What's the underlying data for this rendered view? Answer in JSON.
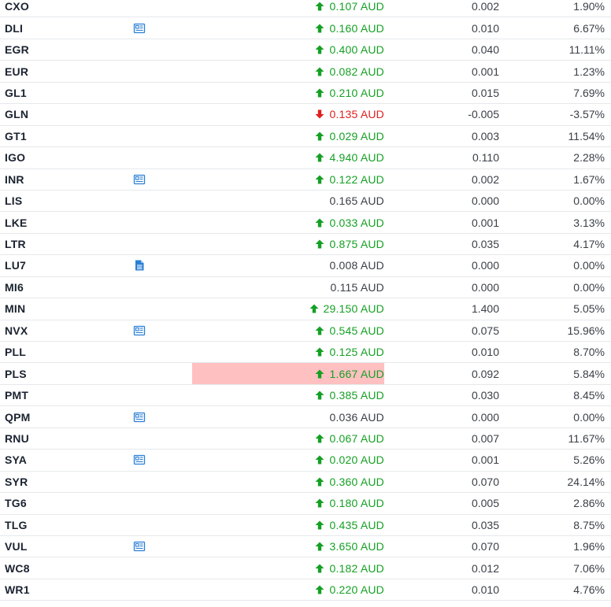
{
  "colors": {
    "up": "#15a024",
    "down": "#e01f1f",
    "neutral": "#3a3f47",
    "icon": "#2a7fd6",
    "highlight": "#ffc0c2"
  },
  "rows": [
    {
      "code": "CXO",
      "icon": "",
      "price": "0.107 AUD",
      "dir": "up",
      "change": "0.002",
      "pct": "1.90%"
    },
    {
      "code": "DLI",
      "icon": "announcement-icon",
      "price": "0.160 AUD",
      "dir": "up",
      "change": "0.010",
      "pct": "6.67%"
    },
    {
      "code": "EGR",
      "icon": "",
      "price": "0.400 AUD",
      "dir": "up",
      "change": "0.040",
      "pct": "11.11%"
    },
    {
      "code": "EUR",
      "icon": "",
      "price": "0.082 AUD",
      "dir": "up",
      "change": "0.001",
      "pct": "1.23%"
    },
    {
      "code": "GL1",
      "icon": "",
      "price": "0.210 AUD",
      "dir": "up",
      "change": "0.015",
      "pct": "7.69%"
    },
    {
      "code": "GLN",
      "icon": "",
      "price": "0.135 AUD",
      "dir": "down",
      "change": "-0.005",
      "pct": "-3.57%"
    },
    {
      "code": "GT1",
      "icon": "",
      "price": "0.029 AUD",
      "dir": "up",
      "change": "0.003",
      "pct": "11.54%"
    },
    {
      "code": "IGO",
      "icon": "",
      "price": "4.940 AUD",
      "dir": "up",
      "change": "0.110",
      "pct": "2.28%"
    },
    {
      "code": "INR",
      "icon": "announcement-icon",
      "price": "0.122 AUD",
      "dir": "up",
      "change": "0.002",
      "pct": "1.67%"
    },
    {
      "code": "LIS",
      "icon": "",
      "price": "0.165 AUD",
      "dir": "flat",
      "change": "0.000",
      "pct": "0.00%"
    },
    {
      "code": "LKE",
      "icon": "",
      "price": "0.033 AUD",
      "dir": "up",
      "change": "0.001",
      "pct": "3.13%"
    },
    {
      "code": "LTR",
      "icon": "",
      "price": "0.875 AUD",
      "dir": "up",
      "change": "0.035",
      "pct": "4.17%"
    },
    {
      "code": "LU7",
      "icon": "document-icon",
      "price": "0.008 AUD",
      "dir": "flat",
      "change": "0.000",
      "pct": "0.00%"
    },
    {
      "code": "MI6",
      "icon": "",
      "price": "0.115 AUD",
      "dir": "flat",
      "change": "0.000",
      "pct": "0.00%"
    },
    {
      "code": "MIN",
      "icon": "",
      "price": "29.150 AUD",
      "dir": "up",
      "change": "1.400",
      "pct": "5.05%"
    },
    {
      "code": "NVX",
      "icon": "announcement-icon",
      "price": "0.545 AUD",
      "dir": "up",
      "change": "0.075",
      "pct": "15.96%"
    },
    {
      "code": "PLL",
      "icon": "",
      "price": "0.125 AUD",
      "dir": "up",
      "change": "0.010",
      "pct": "8.70%"
    },
    {
      "code": "PLS",
      "icon": "",
      "price": "1.667 AUD",
      "dir": "up",
      "change": "0.092",
      "pct": "5.84%",
      "highlight": true
    },
    {
      "code": "PMT",
      "icon": "",
      "price": "0.385 AUD",
      "dir": "up",
      "change": "0.030",
      "pct": "8.45%"
    },
    {
      "code": "QPM",
      "icon": "announcement-icon",
      "price": "0.036 AUD",
      "dir": "flat",
      "change": "0.000",
      "pct": "0.00%"
    },
    {
      "code": "RNU",
      "icon": "",
      "price": "0.067 AUD",
      "dir": "up",
      "change": "0.007",
      "pct": "11.67%"
    },
    {
      "code": "SYA",
      "icon": "announcement-icon",
      "price": "0.020 AUD",
      "dir": "up",
      "change": "0.001",
      "pct": "5.26%"
    },
    {
      "code": "SYR",
      "icon": "",
      "price": "0.360 AUD",
      "dir": "up",
      "change": "0.070",
      "pct": "24.14%"
    },
    {
      "code": "TG6",
      "icon": "",
      "price": "0.180 AUD",
      "dir": "up",
      "change": "0.005",
      "pct": "2.86%"
    },
    {
      "code": "TLG",
      "icon": "",
      "price": "0.435 AUD",
      "dir": "up",
      "change": "0.035",
      "pct": "8.75%"
    },
    {
      "code": "VUL",
      "icon": "announcement-icon",
      "price": "3.650 AUD",
      "dir": "up",
      "change": "0.070",
      "pct": "1.96%"
    },
    {
      "code": "WC8",
      "icon": "",
      "price": "0.182 AUD",
      "dir": "up",
      "change": "0.012",
      "pct": "7.06%"
    },
    {
      "code": "WR1",
      "icon": "",
      "price": "0.220 AUD",
      "dir": "up",
      "change": "0.010",
      "pct": "4.76%"
    }
  ]
}
